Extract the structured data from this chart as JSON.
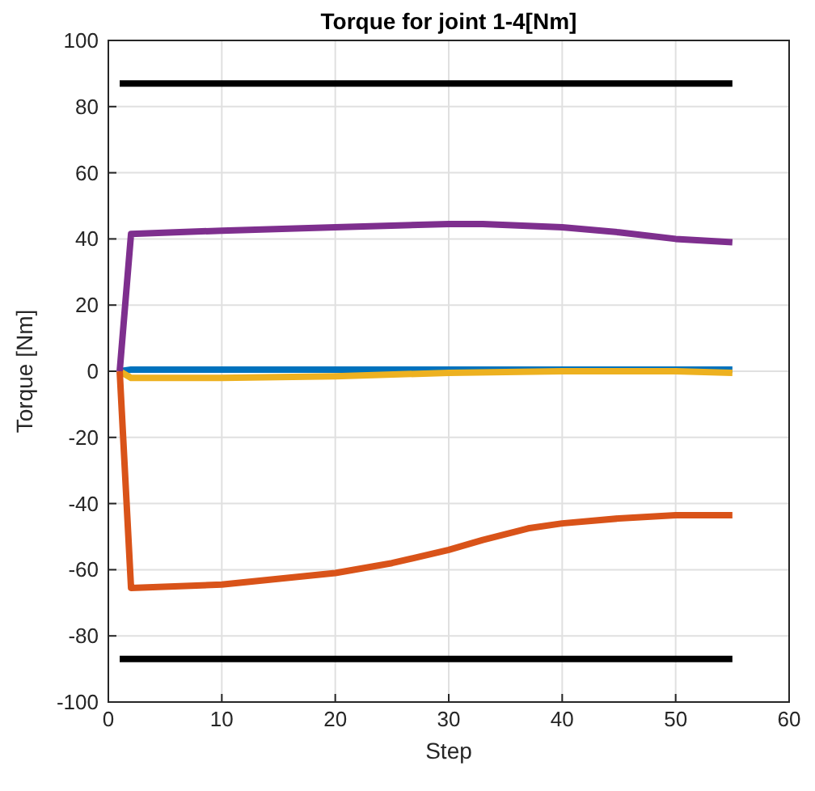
{
  "chart_data": {
    "type": "line",
    "title": "Torque for joint 1-4[Nm]",
    "xlabel": "Step",
    "ylabel": "Torque [Nm]",
    "xlim": [
      0,
      60
    ],
    "ylim": [
      -100,
      100
    ],
    "xticks": [
      0,
      10,
      20,
      30,
      40,
      50,
      60
    ],
    "yticks": [
      -100,
      -80,
      -60,
      -40,
      -20,
      0,
      20,
      40,
      60,
      80,
      100
    ],
    "grid": true,
    "marker": "none",
    "line_style": "solid",
    "series": [
      {
        "color": "#000000",
        "x": [
          1,
          55
        ],
        "values": [
          87,
          87
        ]
      },
      {
        "color": "#000000",
        "x": [
          1,
          55
        ],
        "values": [
          -87,
          -87
        ]
      },
      {
        "color": "#0072bd",
        "x": [
          1,
          2,
          10,
          20,
          30,
          40,
          55
        ],
        "values": [
          0,
          0.5,
          0.5,
          0.5,
          0.5,
          0.5,
          0.5
        ]
      },
      {
        "color": "#edb120",
        "x": [
          1,
          2,
          10,
          20,
          30,
          40,
          50,
          55
        ],
        "values": [
          0,
          -2,
          -2,
          -1.5,
          -0.5,
          0,
          0,
          -0.5
        ]
      },
      {
        "color": "#7e2f8e",
        "x": [
          1,
          2,
          10,
          20,
          30,
          33,
          40,
          45,
          50,
          55
        ],
        "values": [
          0,
          41.5,
          42.5,
          43.5,
          44.5,
          44.5,
          43.5,
          42,
          40,
          39
        ]
      },
      {
        "color": "#d95319",
        "x": [
          1,
          2,
          10,
          20,
          25,
          30,
          33,
          37,
          40,
          45,
          50,
          55
        ],
        "values": [
          0,
          -65.5,
          -64.5,
          -61,
          -58,
          -54,
          -51,
          -47.5,
          -46,
          -44.5,
          -43.5,
          -43.5
        ]
      }
    ]
  }
}
